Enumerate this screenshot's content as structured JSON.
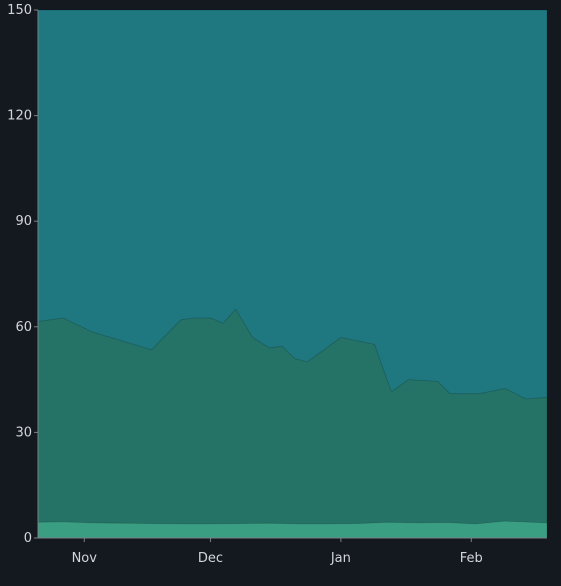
{
  "colors": {
    "background": "#141920",
    "top_series": "#1f7780",
    "middle_series": "#257266",
    "bottom_series": "#3a9e82",
    "axis_text": "#d2d6da",
    "axis_line": "#7a8086"
  },
  "chart_data": {
    "type": "area",
    "stacked": true,
    "title": "",
    "xlabel": "",
    "ylabel": "",
    "ylim": [
      0,
      150
    ],
    "y_ticks": [
      0,
      30,
      60,
      90,
      120,
      150
    ],
    "x_ticks": [
      {
        "date": "2023-11-01",
        "label": "Nov"
      },
      {
        "date": "2023-12-01",
        "label": "Dec"
      },
      {
        "date": "2024-01-01",
        "label": "Jan"
      },
      {
        "date": "2024-02-01",
        "label": "Feb"
      }
    ],
    "xlim": [
      "2023-10-21",
      "2024-02-19"
    ],
    "grid": false,
    "legend": "none",
    "series": [
      {
        "color": "#3a9e82",
        "x": [
          "2023-10-21",
          "2023-10-27",
          "2023-11-03",
          "2023-11-10",
          "2023-11-17",
          "2023-11-24",
          "2023-12-01",
          "2023-12-08",
          "2023-12-15",
          "2023-12-22",
          "2023-12-29",
          "2024-01-05",
          "2024-01-12",
          "2024-01-19",
          "2024-01-26",
          "2024-02-02",
          "2024-02-09",
          "2024-02-19"
        ],
        "values": [
          4.5,
          4.6,
          4.3,
          4.2,
          4.1,
          4.0,
          4.0,
          4.1,
          4.2,
          4.0,
          4.0,
          4.1,
          4.5,
          4.3,
          4.4,
          4.0,
          4.8,
          4.3
        ]
      },
      {
        "color": "#257266",
        "x": [
          "2023-10-21",
          "2023-10-27",
          "2023-11-03",
          "2023-11-10",
          "2023-11-17",
          "2023-11-24",
          "2023-11-27",
          "2023-12-01",
          "2023-12-04",
          "2023-12-07",
          "2023-12-11",
          "2023-12-15",
          "2023-12-18",
          "2023-12-21",
          "2023-12-24",
          "2024-01-01",
          "2024-01-05",
          "2024-01-09",
          "2024-01-13",
          "2024-01-17",
          "2024-01-24",
          "2024-01-27",
          "2024-02-03",
          "2024-02-09",
          "2024-02-14",
          "2024-02-19"
        ],
        "values": [
          61.5,
          62.5,
          58.5,
          56,
          53.5,
          62,
          62.5,
          62.5,
          61,
          65,
          57,
          54,
          54.5,
          51,
          50,
          57,
          56,
          55,
          41.5,
          45,
          44.5,
          41,
          41,
          42.5,
          39.5,
          40
        ]
      },
      {
        "color": "#1f7780",
        "x": [
          "2023-10-21",
          "2024-02-19"
        ],
        "values": [
          150,
          150
        ]
      }
    ]
  }
}
